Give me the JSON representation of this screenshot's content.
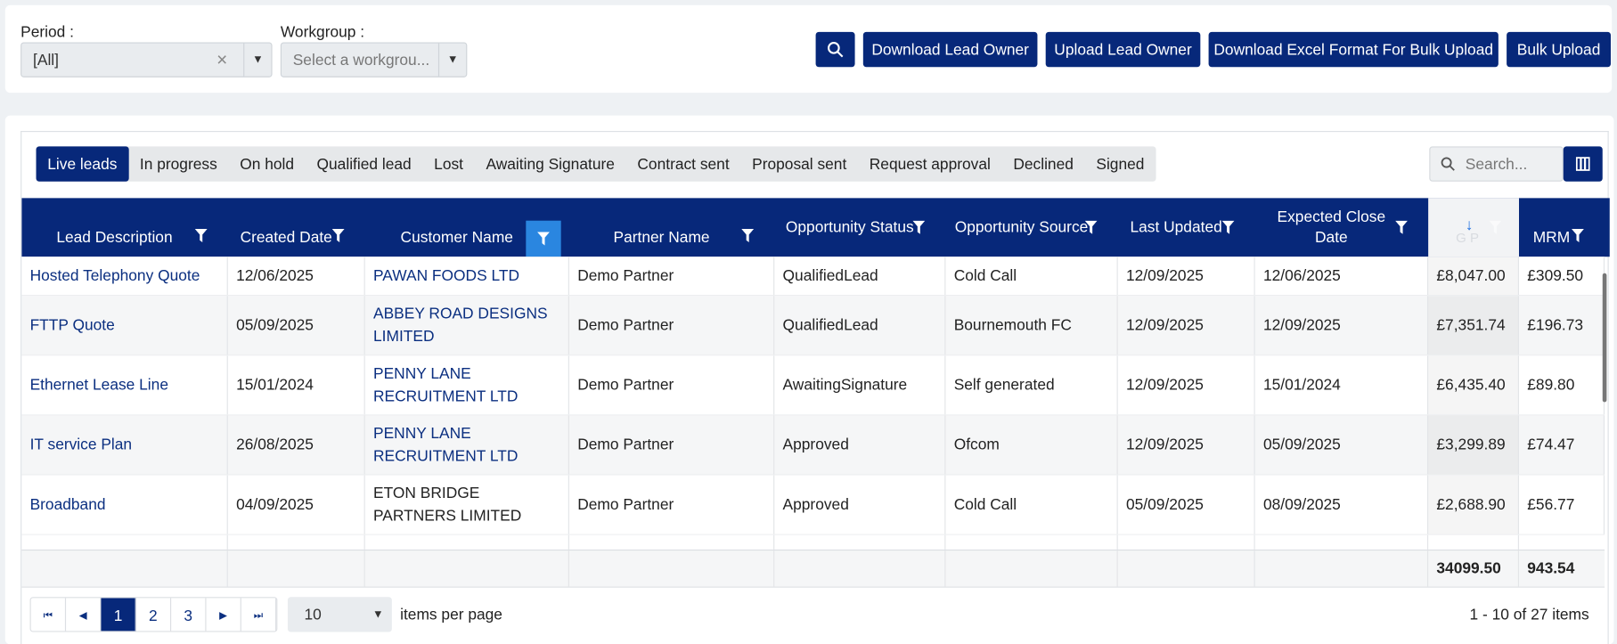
{
  "filters": {
    "period_label": "Period :",
    "period_value": "[All]",
    "workgroup_label": "Workgroup :",
    "workgroup_placeholder": "Select a workgrou..."
  },
  "buttons": [
    "Download Lead Owner",
    "Upload Lead Owner",
    "Download Excel Format For Bulk Upload",
    "Bulk Upload"
  ],
  "tabs": [
    "Live leads",
    "In progress",
    "On hold",
    "Qualified lead",
    "Lost",
    "Awaiting Signature",
    "Contract sent",
    "Proposal sent",
    "Request approval",
    "Declined",
    "Signed"
  ],
  "search_placeholder": "Search...",
  "table": {
    "columns": [
      "Lead Description",
      "Created Date",
      "Customer Name",
      "Partner Name",
      "Opportunity Status",
      "Opportunity Source",
      "Last Updated",
      "Expected Close Date",
      "G P",
      "MRM"
    ],
    "rows": [
      [
        "Hosted Telephony Quote",
        "12/06/2025",
        "PAWAN FOODS LTD",
        "Demo Partner",
        "QualifiedLead",
        "Cold Call",
        "12/09/2025",
        "12/06/2025",
        "£8,047.00",
        "£309.50"
      ],
      [
        "FTTP Quote",
        "05/09/2025",
        "ABBEY ROAD DESIGNS LIMITED",
        "Demo Partner",
        "QualifiedLead",
        "Bournemouth FC",
        "12/09/2025",
        "12/09/2025",
        "£7,351.74",
        "£196.73"
      ],
      [
        "Ethernet Lease Line",
        "15/01/2024",
        "PENNY LANE RECRUITMENT LTD",
        "Demo Partner",
        "AwaitingSignature",
        "Self generated",
        "12/09/2025",
        "15/01/2024",
        "£6,435.40",
        "£89.80"
      ],
      [
        "IT service Plan",
        "26/08/2025",
        "PENNY LANE RECRUITMENT LTD",
        "Demo Partner",
        "Approved",
        "Ofcom",
        "12/09/2025",
        "05/09/2025",
        "£3,299.89",
        "£74.47"
      ],
      [
        "Broadband",
        "04/09/2025",
        "ETON BRIDGE PARTNERS LIMITED",
        "Demo Partner",
        "Approved",
        "Cold Call",
        "05/09/2025",
        "08/09/2025",
        "£2,688.90",
        "£56.77"
      ]
    ],
    "totals": {
      "gp": "34099.50",
      "mrm": "943.54"
    }
  },
  "pagination": {
    "pages": [
      "1",
      "2",
      "3"
    ],
    "page_size": "10",
    "page_size_label": "items per page",
    "summary": "1 - 10 of 27 items"
  }
}
